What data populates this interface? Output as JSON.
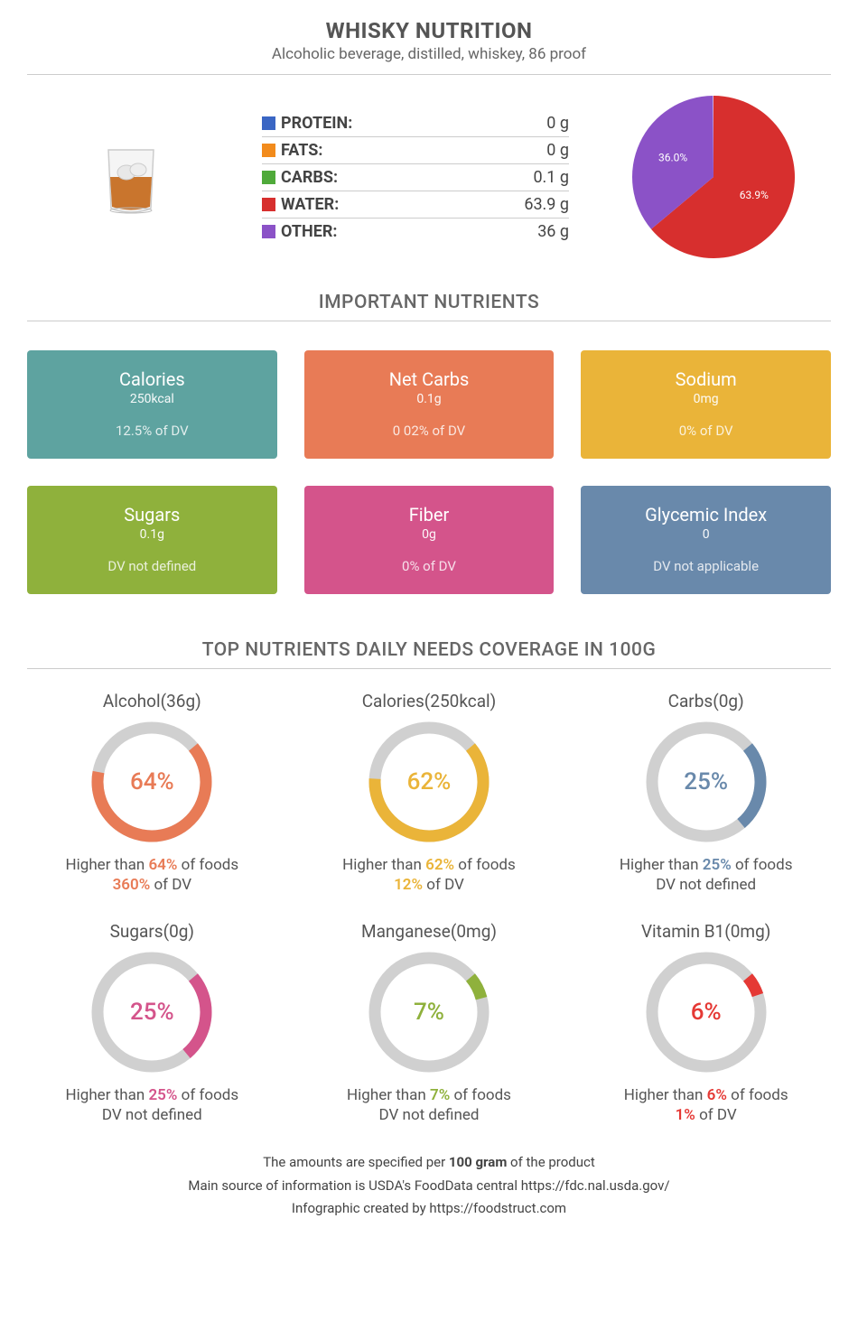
{
  "title": "WHISKY NUTRITION",
  "subtitle": "Alcoholic beverage, distilled, whiskey, 86 proof",
  "macros": [
    {
      "label": "PROTEIN:",
      "value": "0 g",
      "color": "#3a66c4"
    },
    {
      "label": "FATS:",
      "value": "0 g",
      "color": "#f28b1c"
    },
    {
      "label": "CARBS:",
      "value": "0.1 g",
      "color": "#4faa3a"
    },
    {
      "label": "WATER:",
      "value": "63.9 g",
      "color": "#d72f2e"
    },
    {
      "label": "OTHER:",
      "value": "36 g",
      "color": "#8b52c7"
    }
  ],
  "pie": {
    "slices": [
      {
        "pct": 63.9,
        "color": "#d72f2e",
        "label": "63.9%"
      },
      {
        "pct": 36.0,
        "color": "#8b52c7",
        "label": "36.0%"
      }
    ],
    "radius": 90
  },
  "sections": {
    "important": "IMPORTANT NUTRIENTS",
    "top": "TOP NUTRIENTS DAILY NEEDS COVERAGE IN 100G"
  },
  "cards": [
    {
      "title": "Calories",
      "value": "250kcal",
      "dv": "12.5% of DV",
      "bg": "#5ea3a0"
    },
    {
      "title": "Net Carbs",
      "value": "0.1g",
      "dv": "0 02% of DV",
      "bg": "#e87b56"
    },
    {
      "title": "Sodium",
      "value": "0mg",
      "dv": "0% of DV",
      "bg": "#eab439"
    },
    {
      "title": "Sugars",
      "value": "0.1g",
      "dv": "DV not defined",
      "bg": "#8fb13c"
    },
    {
      "title": "Fiber",
      "value": "0g",
      "dv": "0% of DV",
      "bg": "#d4548b"
    },
    {
      "title": "Glycemic Index",
      "value": "0",
      "dv": "DV not applicable",
      "bg": "#6989ab"
    }
  ],
  "donuts": [
    {
      "title": "Alcohol(36g)",
      "pct": 64,
      "color": "#e87b56",
      "line1_pre": "Higher than ",
      "line1_hl": "64%",
      "line1_post": " of foods",
      "line2_hl": "360%",
      "line2_post": " of DV",
      "line2_plain": ""
    },
    {
      "title": "Calories(250kcal)",
      "pct": 62,
      "color": "#eab439",
      "line1_pre": "Higher than ",
      "line1_hl": "62%",
      "line1_post": " of foods",
      "line2_hl": "12%",
      "line2_post": " of DV",
      "line2_plain": ""
    },
    {
      "title": "Carbs(0g)",
      "pct": 25,
      "color": "#6989ab",
      "line1_pre": "Higher than ",
      "line1_hl": "25%",
      "line1_post": " of foods",
      "line2_hl": "",
      "line2_post": "",
      "line2_plain": "DV not defined"
    },
    {
      "title": "Sugars(0g)",
      "pct": 25,
      "color": "#d4548b",
      "line1_pre": "Higher than ",
      "line1_hl": "25%",
      "line1_post": " of foods",
      "line2_hl": "",
      "line2_post": "",
      "line2_plain": "DV not defined"
    },
    {
      "title": "Manganese(0mg)",
      "pct": 7,
      "color": "#8fb13c",
      "line1_pre": "Higher than ",
      "line1_hl": "7%",
      "line1_post": " of foods",
      "line2_hl": "",
      "line2_post": "",
      "line2_plain": "DV not defined"
    },
    {
      "title": "Vitamin B1(0mg)",
      "pct": 6,
      "color": "#e53935",
      "line1_pre": "Higher than ",
      "line1_hl": "6%",
      "line1_post": " of foods",
      "line2_hl": "1%",
      "line2_post": " of DV",
      "line2_plain": ""
    }
  ],
  "footer": {
    "l1_pre": "The amounts are specified per ",
    "l1_bold": "100 gram",
    "l1_post": " of the product",
    "l2": "Main source of information is USDA's FoodData central https://fdc.nal.usda.gov/",
    "l3": "Infographic created by https://foodstruct.com"
  },
  "donut_style": {
    "track": "#d0d0d0",
    "radius": 60,
    "stroke": 13
  }
}
